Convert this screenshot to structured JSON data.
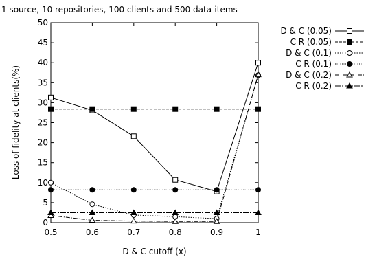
{
  "chart_data": {
    "type": "line",
    "title": "1 source, 10 repositories, 100 clients and 500 data-items",
    "xlabel": "D & C cutoff (x)",
    "ylabel": "Loss of fidelity at clients(%)",
    "xlim": [
      0.5,
      1.0
    ],
    "ylim": [
      0,
      50
    ],
    "x_ticks": [
      0.5,
      0.6,
      0.7,
      0.8,
      0.9,
      1.0
    ],
    "x_tick_labels": [
      "0.5",
      "0.6",
      "0.7",
      "0.8",
      "0.9",
      "1"
    ],
    "y_ticks": [
      0,
      5,
      10,
      15,
      20,
      25,
      30,
      35,
      40,
      45,
      50
    ],
    "y_tick_labels": [
      "0",
      "5",
      "10",
      "15",
      "20",
      "25",
      "30",
      "35",
      "40",
      "45",
      "50"
    ],
    "grid": false,
    "legend_position": "right",
    "x": [
      0.5,
      0.6,
      0.7,
      0.8,
      0.9,
      1.0
    ],
    "series": [
      {
        "name": "D & C (0.05)",
        "values": [
          31.3,
          28.1,
          21.6,
          10.7,
          7.8,
          40.0
        ],
        "marker": "square-open",
        "dash": "solid"
      },
      {
        "name": "C R (0.05)",
        "values": [
          28.4,
          28.4,
          28.4,
          28.4,
          28.4,
          28.4
        ],
        "marker": "square-filled",
        "dash": "dashed"
      },
      {
        "name": "D & C (0.1)",
        "values": [
          10.0,
          4.6,
          1.9,
          1.5,
          1.0,
          36.9
        ],
        "marker": "circle-open",
        "dash": "dotted"
      },
      {
        "name": "C R (0.1)",
        "values": [
          8.2,
          8.2,
          8.2,
          8.2,
          8.2,
          8.2
        ],
        "marker": "circle-filled",
        "dash": "dotted-fine"
      },
      {
        "name": "D & C (0.2)",
        "values": [
          1.8,
          0.6,
          0.4,
          0.3,
          0.3,
          37.0
        ],
        "marker": "triangle-open",
        "dash": "dashdot"
      },
      {
        "name": "C R (0.2)",
        "values": [
          2.5,
          2.5,
          2.5,
          2.5,
          2.5,
          2.5
        ],
        "marker": "triangle-filled",
        "dash": "dashdot-long"
      }
    ]
  }
}
